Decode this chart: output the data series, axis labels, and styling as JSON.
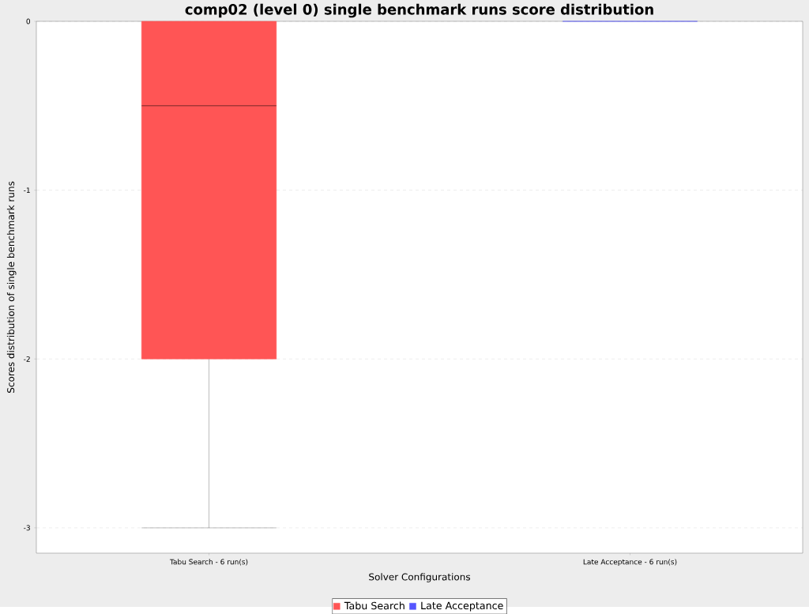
{
  "chart_data": {
    "type": "box",
    "title": "comp02 (level 0) single benchmark runs score distribution",
    "xlabel": "Solver Configurations",
    "ylabel": "Scores distribution of single benchmark runs",
    "categories": [
      "Tabu Search - 6 run(s)",
      "Late Acceptance - 6 run(s)"
    ],
    "series": [
      {
        "name": "Tabu Search",
        "color": "#ff5555",
        "boxes": [
          {
            "low": -3,
            "q1": -2,
            "median": -0.5,
            "q3": 0,
            "high": 0
          },
          null
        ]
      },
      {
        "name": "Late Acceptance",
        "color": "#5555ff",
        "boxes": [
          null,
          {
            "low": 0,
            "q1": 0,
            "median": 0,
            "q3": 0,
            "high": 0
          }
        ]
      }
    ],
    "ylim": [
      -3.15,
      0
    ],
    "yticks": [
      0,
      -1,
      -2,
      -3
    ],
    "grid": "y",
    "legend": "bottom"
  }
}
